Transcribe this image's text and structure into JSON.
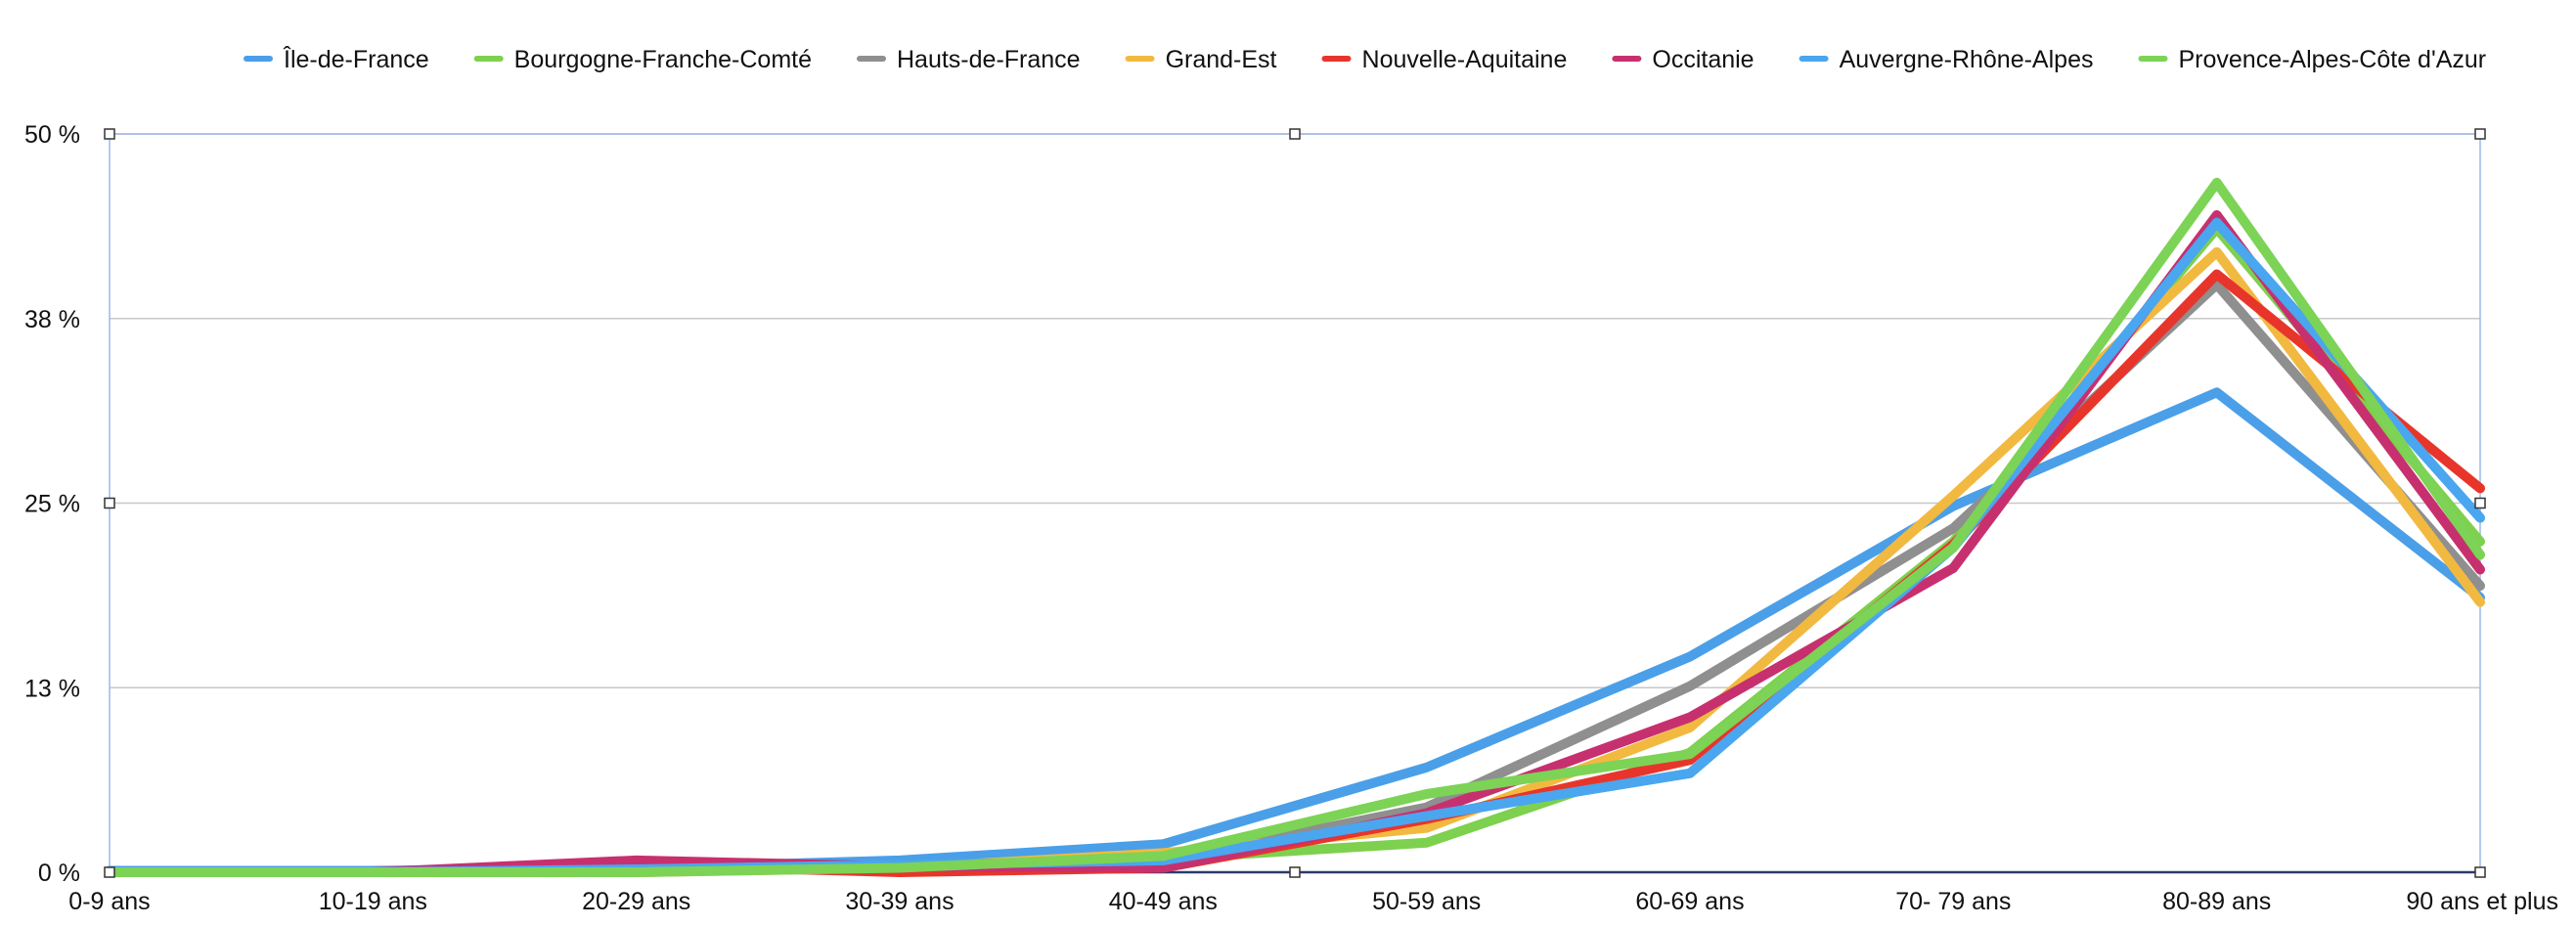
{
  "chart_data": {
    "type": "line",
    "title": "",
    "xlabel": "",
    "ylabel": "",
    "ylim": [
      0,
      50
    ],
    "y_ticks": [
      {
        "value": 0,
        "label": "0 %"
      },
      {
        "value": 12.5,
        "label": "13 %"
      },
      {
        "value": 25,
        "label": "25 %"
      },
      {
        "value": 37.5,
        "label": "38 %"
      },
      {
        "value": 50,
        "label": "50 %"
      }
    ],
    "grid": true,
    "legend_position": "top",
    "categories": [
      "0-9 ans",
      "10-19 ans",
      "20-29 ans",
      "30-39 ans",
      "40-49 ans",
      "50-59 ans",
      "60-69 ans",
      "70- 79 ans",
      "80-89 ans",
      "90 ans et plus"
    ],
    "series": [
      {
        "name": "Île-de-France",
        "color": "#4a9fe8",
        "values": [
          0.1,
          0.1,
          0.3,
          0.8,
          1.9,
          7.1,
          14.6,
          24.8,
          32.5,
          18.6
        ]
      },
      {
        "name": "Bourgogne-Franche-Comté",
        "color": "#7ed04f",
        "values": [
          0.0,
          0.0,
          0.0,
          0.4,
          0.9,
          2.0,
          8.1,
          22.4,
          43.6,
          22.4
        ]
      },
      {
        "name": "Hauts-de-France",
        "color": "#8f8f8f",
        "values": [
          0.0,
          0.0,
          0.3,
          0.3,
          0.8,
          4.4,
          12.6,
          23.3,
          39.8,
          19.4
        ]
      },
      {
        "name": "Grand-Est",
        "color": "#f2b940",
        "values": [
          0.0,
          0.0,
          0.0,
          0.3,
          1.3,
          3.0,
          9.8,
          25.5,
          42.0,
          18.3
        ]
      },
      {
        "name": "Nouvelle-Aquitaine",
        "color": "#e8352b",
        "values": [
          0.0,
          0.0,
          0.5,
          0.0,
          0.3,
          3.6,
          7.6,
          22.2,
          40.5,
          26.0
        ]
      },
      {
        "name": "Occitanie",
        "color": "#c7306f",
        "values": [
          0.0,
          0.0,
          0.8,
          0.4,
          0.3,
          4.0,
          10.5,
          20.6,
          44.5,
          20.5
        ]
      },
      {
        "name": "Auvergne-Rhône-Alpes",
        "color": "#4aa6ee",
        "values": [
          0.0,
          0.0,
          0.2,
          0.5,
          0.8,
          3.8,
          6.7,
          22.0,
          44.0,
          24.0
        ]
      },
      {
        "name": "Provence-Alpes-Côte d'Azur",
        "color": "#7cd356",
        "values": [
          0.0,
          0.0,
          0.0,
          0.3,
          1.1,
          5.3,
          8.0,
          22.0,
          46.7,
          21.5
        ]
      }
    ]
  }
}
